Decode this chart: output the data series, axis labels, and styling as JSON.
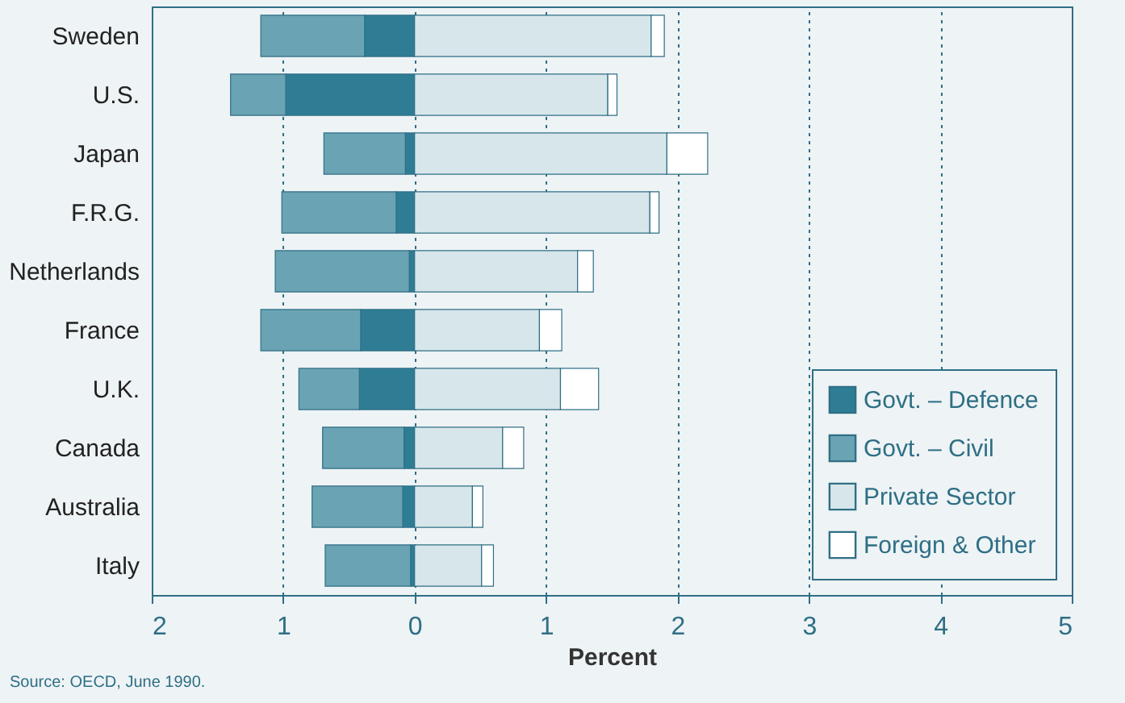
{
  "chart_data": {
    "type": "bar",
    "orientation": "horizontal",
    "stacked": true,
    "categories": [
      "Sweden",
      "U.S.",
      "Japan",
      "F.R.G.",
      "Netherlands",
      "France",
      "U.K.",
      "Canada",
      "Australia",
      "Italy"
    ],
    "series": [
      {
        "name": "Govt. – Defence",
        "color": "#2e7d95",
        "values": [
          -0.38,
          -0.98,
          -0.07,
          -0.14,
          -0.04,
          -0.41,
          -0.42,
          -0.08,
          -0.09,
          -0.03
        ]
      },
      {
        "name": "Govt. – Civil",
        "color": "#6aa3b3",
        "values": [
          -0.79,
          -0.42,
          -0.62,
          -0.87,
          -1.02,
          -0.76,
          -0.46,
          -0.62,
          -0.69,
          -0.65
        ]
      },
      {
        "name": "Private Sector",
        "color": "#d7e6ea",
        "values": [
          1.8,
          1.47,
          1.92,
          1.79,
          1.24,
          0.95,
          1.11,
          0.67,
          0.44,
          0.51
        ]
      },
      {
        "name": "Foreign & Other",
        "color": "#ffffff",
        "values": [
          0.1,
          0.07,
          0.31,
          0.07,
          0.12,
          0.17,
          0.29,
          0.16,
          0.08,
          0.09
        ]
      }
    ],
    "xlim": [
      -2,
      5
    ],
    "xticks": [
      {
        "value": -2,
        "label": "2"
      },
      {
        "value": -1,
        "label": "1"
      },
      0,
      1,
      2,
      3,
      4,
      5
    ],
    "xlabel": "Percent",
    "grid": "x",
    "legend": "bottom right",
    "annotations": [
      "Source: OECD, June 1990."
    ]
  }
}
